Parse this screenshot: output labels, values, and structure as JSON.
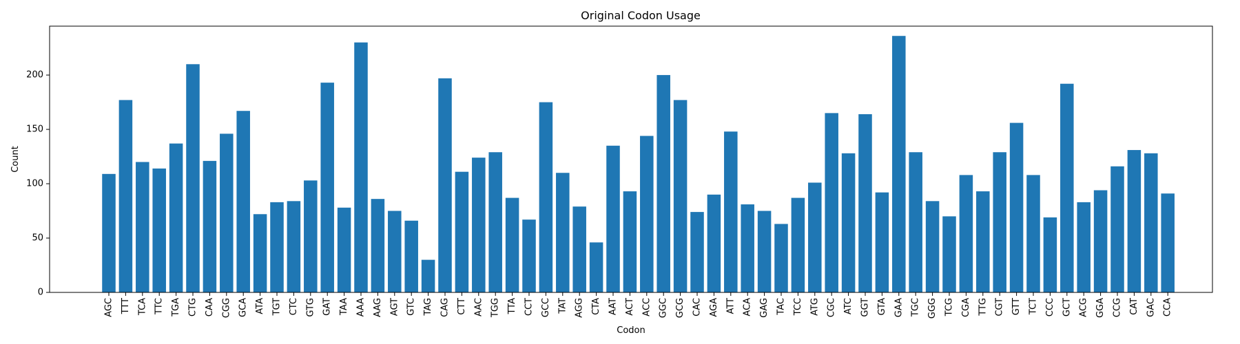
{
  "chart_data": {
    "type": "bar",
    "title": "Original Codon Usage",
    "xlabel": "Codon",
    "ylabel": "Count",
    "ylim": [
      0,
      245
    ],
    "yticks": [
      0,
      50,
      100,
      150,
      200
    ],
    "bar_color": "#1f77b4",
    "grid": false,
    "categories": [
      "AGC",
      "TTT",
      "TCA",
      "TTC",
      "TGA",
      "CTG",
      "CAA",
      "CGG",
      "GCA",
      "ATA",
      "TGT",
      "CTC",
      "GTG",
      "GAT",
      "TAA",
      "AAA",
      "AAG",
      "AGT",
      "GTC",
      "TAG",
      "CAG",
      "CTT",
      "AAC",
      "TGG",
      "TTA",
      "CCT",
      "GCC",
      "TAT",
      "AGG",
      "CTA",
      "AAT",
      "ACT",
      "ACC",
      "GGC",
      "GCG",
      "CAC",
      "AGA",
      "ATT",
      "ACA",
      "GAG",
      "TAC",
      "TCC",
      "ATG",
      "CGC",
      "ATC",
      "GGT",
      "GTA",
      "GAA",
      "TGC",
      "GGG",
      "TCG",
      "CGA",
      "TTG",
      "CGT",
      "GTT",
      "TCT",
      "CCC",
      "GCT",
      "ACG",
      "GGA",
      "CCG",
      "CAT",
      "GAC",
      "CCA"
    ],
    "values": [
      109,
      177,
      120,
      114,
      137,
      210,
      121,
      146,
      167,
      72,
      83,
      84,
      103,
      193,
      78,
      230,
      86,
      75,
      66,
      30,
      197,
      111,
      124,
      129,
      87,
      67,
      175,
      110,
      79,
      46,
      135,
      93,
      144,
      200,
      177,
      74,
      90,
      148,
      81,
      75,
      63,
      87,
      101,
      165,
      128,
      164,
      92,
      236,
      129,
      84,
      70,
      108,
      93,
      129,
      156,
      108,
      69,
      192,
      83,
      94,
      116,
      131,
      128,
      91
    ]
  }
}
